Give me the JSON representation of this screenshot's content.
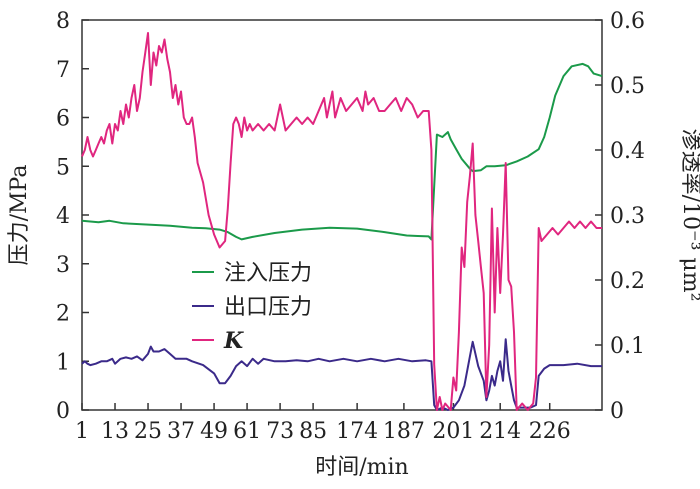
{
  "chart_data": {
    "type": "line",
    "xlabel": "时间/min",
    "ylabel_left": "压力/MPa",
    "ylabel_right": "渗透率/10⁻³ μm²",
    "ylim_left": [
      0,
      8
    ],
    "ylim_right": [
      0,
      0.6
    ],
    "x_tick_labels": [
      "1",
      "13",
      "25",
      "37",
      "49",
      "61",
      "73",
      "85",
      "174",
      "187",
      "201",
      "214",
      "226"
    ],
    "y_left_ticks": [
      "0",
      "1",
      "2",
      "3",
      "4",
      "5",
      "6",
      "7",
      "8"
    ],
    "y_right_ticks": [
      "0",
      "0.1",
      "0.2",
      "0.3",
      "0.4",
      "0.5",
      "0.6"
    ],
    "colors": {
      "injection": "#1b9a4a",
      "outlet": "#3b2a8a",
      "k": "#e0267f"
    },
    "series": [
      {
        "name": "注入压力",
        "axis": "left",
        "points": [
          [
            0,
            3.88
          ],
          [
            6,
            3.85
          ],
          [
            10,
            3.88
          ],
          [
            15,
            3.83
          ],
          [
            25,
            3.8
          ],
          [
            32,
            3.78
          ],
          [
            40,
            3.74
          ],
          [
            45,
            3.73
          ],
          [
            50,
            3.7
          ],
          [
            53,
            3.65
          ],
          [
            56,
            3.55
          ],
          [
            58,
            3.5
          ],
          [
            62,
            3.55
          ],
          [
            70,
            3.63
          ],
          [
            80,
            3.7
          ],
          [
            90,
            3.74
          ],
          [
            100,
            3.72
          ],
          [
            110,
            3.65
          ],
          [
            118,
            3.58
          ],
          [
            122,
            3.57
          ],
          [
            126,
            3.56
          ],
          [
            127,
            3.5
          ],
          [
            129,
            5.65
          ],
          [
            131,
            5.6
          ],
          [
            133,
            5.7
          ],
          [
            134,
            5.55
          ],
          [
            136,
            5.35
          ],
          [
            138,
            5.15
          ],
          [
            141,
            4.95
          ],
          [
            142,
            4.9
          ],
          [
            145,
            4.92
          ],
          [
            147,
            5.0
          ],
          [
            150,
            5.0
          ],
          [
            154,
            5.02
          ],
          [
            158,
            5.1
          ],
          [
            162,
            5.2
          ],
          [
            166,
            5.35
          ],
          [
            168,
            5.6
          ],
          [
            170,
            6.0
          ],
          [
            172,
            6.45
          ],
          [
            175,
            6.85
          ],
          [
            178,
            7.05
          ],
          [
            182,
            7.1
          ],
          [
            184,
            7.05
          ],
          [
            186,
            6.9
          ],
          [
            189,
            6.85
          ]
        ]
      },
      {
        "name": "出口压力",
        "axis": "left",
        "points": [
          [
            0,
            0.95
          ],
          [
            1,
            1.0
          ],
          [
            2,
            0.95
          ],
          [
            3,
            0.92
          ],
          [
            5,
            0.95
          ],
          [
            7,
            1.0
          ],
          [
            9,
            1.0
          ],
          [
            11,
            1.05
          ],
          [
            12,
            0.95
          ],
          [
            14,
            1.05
          ],
          [
            16,
            1.08
          ],
          [
            18,
            1.05
          ],
          [
            20,
            1.1
          ],
          [
            22,
            1.02
          ],
          [
            24,
            1.15
          ],
          [
            25,
            1.3
          ],
          [
            26,
            1.2
          ],
          [
            28,
            1.2
          ],
          [
            30,
            1.25
          ],
          [
            32,
            1.15
          ],
          [
            34,
            1.05
          ],
          [
            36,
            1.05
          ],
          [
            38,
            1.05
          ],
          [
            40,
            1.0
          ],
          [
            44,
            0.92
          ],
          [
            48,
            0.75
          ],
          [
            50,
            0.55
          ],
          [
            52,
            0.55
          ],
          [
            54,
            0.7
          ],
          [
            56,
            0.9
          ],
          [
            58,
            1.0
          ],
          [
            60,
            0.9
          ],
          [
            62,
            1.05
          ],
          [
            64,
            0.95
          ],
          [
            66,
            1.05
          ],
          [
            70,
            1.0
          ],
          [
            74,
            1.0
          ],
          [
            78,
            1.02
          ],
          [
            82,
            1.0
          ],
          [
            86,
            1.05
          ],
          [
            90,
            1.0
          ],
          [
            95,
            1.05
          ],
          [
            100,
            1.0
          ],
          [
            105,
            1.05
          ],
          [
            110,
            1.0
          ],
          [
            115,
            1.05
          ],
          [
            120,
            1.0
          ],
          [
            125,
            1.02
          ],
          [
            127,
            1.0
          ],
          [
            128,
            0.1
          ],
          [
            129,
            0.0
          ],
          [
            131,
            0.05
          ],
          [
            133,
            0.0
          ],
          [
            135,
            0.05
          ],
          [
            137,
            0.2
          ],
          [
            139,
            0.5
          ],
          [
            141,
            1.1
          ],
          [
            142,
            1.4
          ],
          [
            144,
            0.9
          ],
          [
            146,
            0.6
          ],
          [
            147,
            0.2
          ],
          [
            148,
            0.4
          ],
          [
            149,
            0.7
          ],
          [
            150,
            0.5
          ],
          [
            151,
            0.8
          ],
          [
            152,
            1.0
          ],
          [
            153,
            0.6
          ],
          [
            154,
            1.45
          ],
          [
            155,
            0.8
          ],
          [
            156,
            0.5
          ],
          [
            157,
            0.2
          ],
          [
            158,
            0.05
          ],
          [
            160,
            0.05
          ],
          [
            163,
            0.05
          ],
          [
            165,
            0.1
          ],
          [
            166,
            0.7
          ],
          [
            168,
            0.85
          ],
          [
            170,
            0.92
          ],
          [
            175,
            0.92
          ],
          [
            180,
            0.95
          ],
          [
            185,
            0.9
          ],
          [
            189,
            0.9
          ]
        ]
      },
      {
        "name": "K",
        "axis": "right",
        "points": [
          [
            0,
            0.39
          ],
          [
            1,
            0.4
          ],
          [
            2,
            0.42
          ],
          [
            3,
            0.4
          ],
          [
            4,
            0.39
          ],
          [
            5,
            0.4
          ],
          [
            6,
            0.41
          ],
          [
            7,
            0.42
          ],
          [
            8,
            0.41
          ],
          [
            9,
            0.43
          ],
          [
            10,
            0.44
          ],
          [
            11,
            0.41
          ],
          [
            12,
            0.44
          ],
          [
            13,
            0.43
          ],
          [
            14,
            0.46
          ],
          [
            15,
            0.44
          ],
          [
            16,
            0.47
          ],
          [
            17,
            0.45
          ],
          [
            18,
            0.48
          ],
          [
            19,
            0.5
          ],
          [
            20,
            0.46
          ],
          [
            21,
            0.48
          ],
          [
            22,
            0.52
          ],
          [
            23,
            0.55
          ],
          [
            24,
            0.58
          ],
          [
            25,
            0.5
          ],
          [
            26,
            0.55
          ],
          [
            27,
            0.53
          ],
          [
            28,
            0.56
          ],
          [
            29,
            0.55
          ],
          [
            30,
            0.57
          ],
          [
            31,
            0.54
          ],
          [
            32,
            0.52
          ],
          [
            33,
            0.48
          ],
          [
            34,
            0.5
          ],
          [
            35,
            0.47
          ],
          [
            36,
            0.49
          ],
          [
            37,
            0.45
          ],
          [
            38,
            0.44
          ],
          [
            39,
            0.44
          ],
          [
            40,
            0.45
          ],
          [
            41,
            0.42
          ],
          [
            42,
            0.38
          ],
          [
            44,
            0.35
          ],
          [
            46,
            0.3
          ],
          [
            48,
            0.27
          ],
          [
            50,
            0.25
          ],
          [
            52,
            0.26
          ],
          [
            53,
            0.31
          ],
          [
            54,
            0.38
          ],
          [
            55,
            0.44
          ],
          [
            56,
            0.45
          ],
          [
            57,
            0.44
          ],
          [
            58,
            0.42
          ],
          [
            59,
            0.45
          ],
          [
            60,
            0.43
          ],
          [
            61,
            0.44
          ],
          [
            62,
            0.43
          ],
          [
            64,
            0.44
          ],
          [
            66,
            0.43
          ],
          [
            68,
            0.44
          ],
          [
            70,
            0.43
          ],
          [
            72,
            0.47
          ],
          [
            74,
            0.43
          ],
          [
            76,
            0.44
          ],
          [
            78,
            0.45
          ],
          [
            80,
            0.44
          ],
          [
            82,
            0.45
          ],
          [
            84,
            0.44
          ],
          [
            86,
            0.46
          ],
          [
            88,
            0.48
          ],
          [
            89,
            0.45
          ],
          [
            90,
            0.47
          ],
          [
            91,
            0.49
          ],
          [
            92,
            0.45
          ],
          [
            94,
            0.48
          ],
          [
            96,
            0.46
          ],
          [
            98,
            0.47
          ],
          [
            100,
            0.48
          ],
          [
            102,
            0.46
          ],
          [
            103,
            0.49
          ],
          [
            104,
            0.47
          ],
          [
            106,
            0.48
          ],
          [
            108,
            0.46
          ],
          [
            110,
            0.46
          ],
          [
            112,
            0.47
          ],
          [
            114,
            0.48
          ],
          [
            116,
            0.46
          ],
          [
            118,
            0.48
          ],
          [
            120,
            0.47
          ],
          [
            122,
            0.45
          ],
          [
            124,
            0.46
          ],
          [
            126,
            0.46
          ],
          [
            127,
            0.4
          ],
          [
            128,
            0.07
          ],
          [
            129,
            0.0
          ],
          [
            130,
            0.02
          ],
          [
            131,
            0.0
          ],
          [
            132,
            0.01
          ],
          [
            134,
            0.0
          ],
          [
            135,
            0.05
          ],
          [
            136,
            0.03
          ],
          [
            137,
            0.12
          ],
          [
            138,
            0.25
          ],
          [
            139,
            0.22
          ],
          [
            140,
            0.32
          ],
          [
            141,
            0.36
          ],
          [
            142,
            0.41
          ],
          [
            143,
            0.3
          ],
          [
            144,
            0.26
          ],
          [
            145,
            0.22
          ],
          [
            146,
            0.18
          ],
          [
            147,
            0.02
          ],
          [
            148,
            0.1
          ],
          [
            149,
            0.31
          ],
          [
            150,
            0.15
          ],
          [
            151,
            0.28
          ],
          [
            152,
            0.18
          ],
          [
            153,
            0.27
          ],
          [
            154,
            0.38
          ],
          [
            155,
            0.2
          ],
          [
            156,
            0.19
          ],
          [
            157,
            0.12
          ],
          [
            158,
            0.0
          ],
          [
            160,
            0.01
          ],
          [
            162,
            0.0
          ],
          [
            164,
            0.01
          ],
          [
            165,
            0.05
          ],
          [
            166,
            0.28
          ],
          [
            167,
            0.26
          ],
          [
            169,
            0.27
          ],
          [
            171,
            0.28
          ],
          [
            173,
            0.27
          ],
          [
            175,
            0.28
          ],
          [
            177,
            0.29
          ],
          [
            179,
            0.28
          ],
          [
            181,
            0.29
          ],
          [
            183,
            0.28
          ],
          [
            185,
            0.29
          ],
          [
            187,
            0.28
          ],
          [
            189,
            0.28
          ]
        ]
      }
    ],
    "legend_position": "center-left"
  }
}
